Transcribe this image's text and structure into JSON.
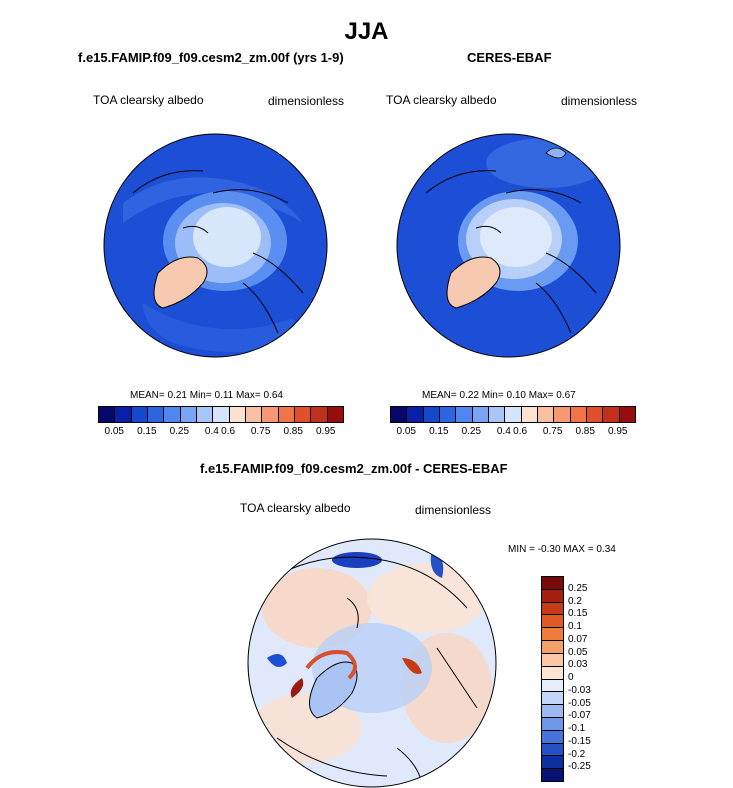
{
  "title": "JJA",
  "panels": {
    "model": {
      "title": "f.e15.FAMIP.f09_f09.cesm2_zm.00f (yrs 1-9)",
      "variable": "TOA clearsky albedo",
      "units": "dimensionless",
      "stats": "MEAN=   0.21  Min=   0.11  Max=   0.64"
    },
    "obs": {
      "title": "CERES-EBAF",
      "variable": "TOA clearsky albedo",
      "units": "dimensionless",
      "stats": "MEAN=   0.22  Min=   0.10  Max=   0.67"
    },
    "diff": {
      "title": "f.e15.FAMIP.f09_f09.cesm2_zm.00f - CERES-EBAF",
      "variable": "TOA clearsky albedo",
      "units": "dimensionless",
      "stats": "MIN =  -0.30 MAX =    0.34"
    }
  },
  "colorbar_abs": {
    "colors": [
      "#08086b",
      "#0a1fa8",
      "#1548cf",
      "#2d64e0",
      "#4f86ef",
      "#7aa4f4",
      "#a8c6f8",
      "#d4e4fb",
      "#fde2d2",
      "#f9bfa3",
      "#f59873",
      "#f07446",
      "#e2502a",
      "#c1301a",
      "#960d0d"
    ],
    "labels": [
      "0.05",
      "0.15",
      "0.25",
      "0.4",
      "0.6",
      "0.75",
      "0.85",
      "0.95"
    ]
  },
  "colorbar_diff": {
    "colors": [
      "#7a0a0a",
      "#a3200f",
      "#c63a18",
      "#e05a26",
      "#f07c3c",
      "#f5a06a",
      "#fac6a5",
      "#fde4d3",
      "#e6eefb",
      "#c4d6f6",
      "#9dbaf0",
      "#6f97e8",
      "#4573db",
      "#2452c6",
      "#0c2fa0",
      "#081273"
    ],
    "labels": [
      "0.25",
      "0.2",
      "0.15",
      "0.1",
      "0.07",
      "0.05",
      "0.03",
      "0",
      "-0.03",
      "-0.05",
      "-0.07",
      "-0.1",
      "-0.15",
      "-0.2",
      "-0.25"
    ]
  }
}
